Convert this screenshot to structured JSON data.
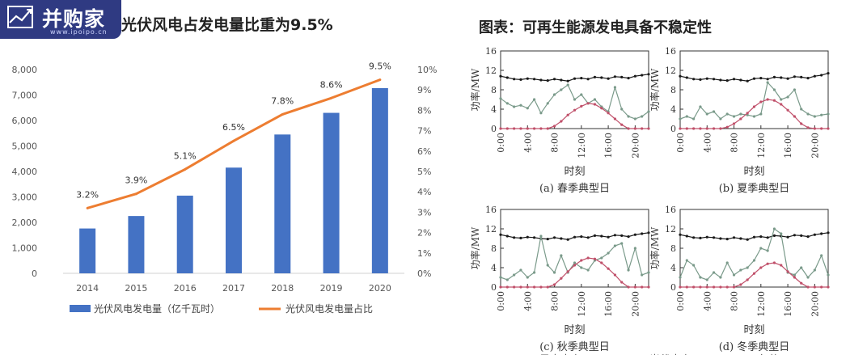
{
  "logo": {
    "main": "并购家",
    "sub": "www.ipoipo.cn"
  },
  "left_title": "光伏风电占发电量比重为9.5%",
  "right_title": "图表：可再生能源发电具备不稳定性",
  "chart_data": [
    {
      "type": "bar",
      "title": "光伏风电占发电量比重为9.5%",
      "categories": [
        "2014",
        "2015",
        "2016",
        "2017",
        "2018",
        "2019",
        "2020"
      ],
      "y_ticks": [
        "0",
        "1,000",
        "2,000",
        "3,000",
        "4,000",
        "5,000",
        "6,000",
        "7,000",
        "8,000"
      ],
      "y2_ticks": [
        "0%",
        "1%",
        "2%",
        "3%",
        "4%",
        "5%",
        "6%",
        "7%",
        "8%",
        "9%",
        "10%"
      ],
      "ylim": [
        0,
        8000
      ],
      "y2lim": [
        0,
        10
      ],
      "series": [
        {
          "name": "光伏风电发电量（亿千瓦时）",
          "type": "bar",
          "color": "#4472c4",
          "values": [
            1760,
            2250,
            3050,
            4150,
            5450,
            6300,
            7270
          ]
        },
        {
          "name": "光伏风电发电量占比",
          "type": "line",
          "color": "#ed7d31",
          "values": [
            3.2,
            3.9,
            5.1,
            6.5,
            7.8,
            8.6,
            9.5
          ],
          "labels": [
            "3.2%",
            "3.9%",
            "5.1%",
            "6.5%",
            "7.8%",
            "8.6%",
            "9.5%"
          ]
        }
      ],
      "legend": "bottom"
    },
    {
      "type": "line",
      "title": "图表：可再生能源发电具备不稳定性",
      "ylabel": "功率/MW",
      "xlabel": "时刻",
      "y_ticks": [
        "0",
        "4",
        "8",
        "12",
        "16"
      ],
      "x_ticks": [
        "0:00",
        "4:00",
        "8:00",
        "12:00",
        "16:00",
        "20:00"
      ],
      "ylim": [
        0,
        16
      ],
      "xlim": [
        0,
        22
      ],
      "panels": [
        {
          "caption": "(a) 春季典型日",
          "series": [
            {
              "color": "#1a1a1a",
              "values": [
                10.8,
                10.5,
                10.2,
                10.1,
                10.3,
                10.2,
                10.0,
                9.9,
                10.2,
                10.0,
                9.8,
                10.3,
                10.4,
                10.2,
                10.6,
                10.5,
                10.3,
                10.7,
                10.6,
                10.4,
                10.8,
                11.0,
                11.2
              ]
            },
            {
              "color": "#7a9a8a",
              "values": [
                6.2,
                5.2,
                4.5,
                4.8,
                4.2,
                6.0,
                3.2,
                5.2,
                7.0,
                8.0,
                9.0,
                6.0,
                7.0,
                5.2,
                6.0,
                4.5,
                3.5,
                8.5,
                4.0,
                2.5,
                2.0,
                2.5,
                3.5
              ]
            },
            {
              "color": "#c0506a",
              "values": [
                0,
                0,
                0,
                0,
                0,
                0,
                0,
                0,
                0.5,
                1.5,
                2.8,
                3.8,
                4.6,
                5.2,
                5.0,
                4.2,
                3.2,
                2.0,
                0.8,
                0,
                0,
                0,
                0
              ]
            }
          ]
        },
        {
          "caption": "(b) 夏季典型日",
          "series": [
            {
              "color": "#1a1a1a",
              "values": [
                10.8,
                10.5,
                10.2,
                10.1,
                10.3,
                10.2,
                10.0,
                9.9,
                10.2,
                10.0,
                9.8,
                10.3,
                10.4,
                10.2,
                10.6,
                10.5,
                10.3,
                10.7,
                10.6,
                10.4,
                10.8,
                11.0,
                11.4
              ]
            },
            {
              "color": "#7a9a8a",
              "values": [
                2.0,
                2.5,
                2.0,
                4.5,
                3.0,
                3.5,
                2.0,
                3.0,
                2.5,
                3.0,
                2.8,
                2.5,
                3.0,
                9.5,
                8.0,
                6.0,
                6.5,
                8.0,
                4.0,
                3.0,
                2.5,
                2.8,
                3.0
              ]
            },
            {
              "color": "#c0506a",
              "values": [
                0,
                0,
                0,
                0,
                0,
                0,
                0,
                0.3,
                1.0,
                2.0,
                3.2,
                4.5,
                5.5,
                6.0,
                5.8,
                5.0,
                3.8,
                2.5,
                1.0,
                0.2,
                0,
                0,
                0
              ]
            }
          ]
        },
        {
          "caption": "(c) 秋季典型日",
          "series": [
            {
              "color": "#1a1a1a",
              "values": [
                10.8,
                10.5,
                10.2,
                10.1,
                10.3,
                10.2,
                10.0,
                9.9,
                10.2,
                10.0,
                9.8,
                10.3,
                10.4,
                10.2,
                10.6,
                10.5,
                10.3,
                10.7,
                10.6,
                10.4,
                10.8,
                11.0,
                11.2
              ]
            },
            {
              "color": "#7a9a8a",
              "values": [
                2.0,
                1.5,
                2.5,
                3.5,
                2.0,
                3.0,
                10.5,
                4.5,
                3.0,
                6.5,
                3.0,
                5.0,
                4.0,
                3.5,
                5.5,
                6.0,
                7.0,
                8.5,
                9.0,
                3.5,
                8.0,
                2.5,
                3.0
              ]
            },
            {
              "color": "#c0506a",
              "values": [
                0,
                0,
                0,
                0,
                0,
                0,
                0,
                0,
                0.5,
                1.8,
                3.2,
                4.5,
                5.5,
                6.0,
                5.8,
                5.0,
                3.8,
                2.5,
                1.0,
                0,
                0,
                0,
                0
              ]
            }
          ]
        },
        {
          "caption": "(d) 冬季典型日",
          "series": [
            {
              "color": "#1a1a1a",
              "values": [
                10.8,
                10.5,
                10.2,
                10.1,
                10.3,
                10.2,
                10.0,
                9.9,
                10.2,
                10.0,
                9.8,
                10.3,
                10.4,
                10.2,
                10.6,
                10.5,
                10.3,
                10.7,
                10.6,
                10.4,
                10.8,
                11.0,
                11.2
              ]
            },
            {
              "color": "#7a9a8a",
              "values": [
                2.0,
                5.5,
                4.5,
                2.0,
                1.5,
                3.0,
                2.0,
                5.0,
                2.5,
                3.5,
                4.0,
                5.5,
                8.0,
                7.5,
                12.0,
                11.0,
                3.0,
                2.5,
                4.0,
                2.0,
                3.5,
                6.5,
                2.5
              ]
            },
            {
              "color": "#c0506a",
              "values": [
                0,
                0,
                0,
                0,
                0,
                0,
                0,
                0,
                0,
                0.5,
                1.5,
                2.8,
                4.0,
                4.8,
                5.0,
                4.5,
                3.2,
                2.0,
                0.8,
                0,
                0,
                0,
                0
              ]
            }
          ]
        }
      ],
      "legend_fragments": [
        "风电出力",
        "光伏出力",
        "负荷"
      ]
    }
  ]
}
